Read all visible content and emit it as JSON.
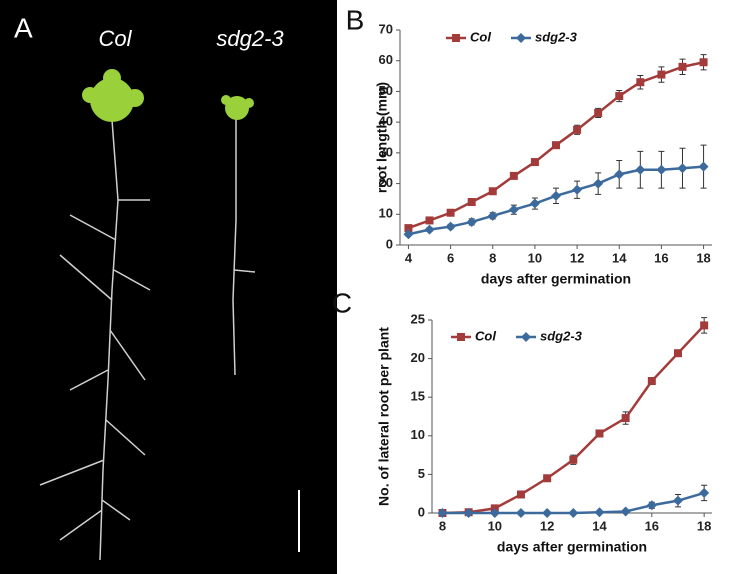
{
  "panel_a": {
    "label": "A",
    "plants": [
      "Col",
      "sdg2-3"
    ]
  },
  "chart_data": [
    {
      "type": "line",
      "panel": "B",
      "x_label": "days after germination",
      "y_label": "root length (mm)",
      "x": [
        4,
        5,
        6,
        7,
        8,
        9,
        10,
        11,
        12,
        13,
        14,
        15,
        16,
        17,
        18
      ],
      "series": [
        {
          "name": "Col",
          "color": "#a33b3b",
          "marker": "square",
          "values": [
            5.5,
            8,
            10.5,
            14,
            17.5,
            22.5,
            27,
            32.5,
            37.5,
            43,
            48.5,
            53,
            55.5,
            58,
            59.5
          ],
          "errors": [
            0.5,
            0.6,
            0.8,
            1,
            1,
            1,
            1,
            1,
            1.5,
            1.5,
            1.8,
            2.2,
            2.5,
            2.5,
            2.5
          ]
        },
        {
          "name": "sdg2-3",
          "color": "#3d6a9c",
          "marker": "diamond",
          "values": [
            3.5,
            5,
            6,
            7.5,
            9.5,
            11.5,
            13.5,
            16,
            18,
            20,
            23,
            24.5,
            24.5,
            25,
            25.5
          ],
          "errors": [
            0.5,
            0.6,
            0.7,
            1,
            1,
            1.5,
            1.8,
            2.5,
            2.8,
            3.5,
            4.5,
            6,
            6,
            6.5,
            7
          ]
        }
      ],
      "xlim": [
        3.6,
        18.4
      ],
      "xticks": [
        4,
        6,
        8,
        10,
        12,
        14,
        16,
        18
      ],
      "ylim": [
        0,
        70
      ],
      "yticks": [
        0,
        10,
        20,
        30,
        40,
        50,
        60,
        70
      ],
      "legend": "top-left"
    },
    {
      "type": "line",
      "panel": "C",
      "x_label": "days after germination",
      "y_label": "No. of lateral root per plant",
      "x": [
        8,
        9,
        10,
        11,
        12,
        13,
        14,
        15,
        16,
        17,
        18
      ],
      "series": [
        {
          "name": "Col",
          "color": "#a33b3b",
          "marker": "square",
          "values": [
            0,
            0.1,
            0.6,
            2.4,
            4.5,
            6.9,
            10.3,
            12.3,
            17.1,
            20.7,
            24.3
          ],
          "errors": [
            0,
            0.1,
            0.2,
            0.2,
            0.4,
            0.6,
            0.4,
            0.8,
            0.2,
            0.4,
            1
          ]
        },
        {
          "name": "sdg2-3",
          "color": "#3d6a9c",
          "marker": "diamond",
          "values": [
            0,
            0,
            0,
            0,
            0,
            0,
            0.1,
            0.2,
            1,
            1.6,
            2.6
          ],
          "errors": [
            0,
            0,
            0,
            0,
            0,
            0,
            0,
            0.1,
            0.4,
            0.8,
            1
          ]
        }
      ],
      "xlim": [
        7.6,
        18.3
      ],
      "xticks": [
        8,
        10,
        12,
        14,
        16,
        18
      ],
      "ylim": [
        0,
        25
      ],
      "yticks": [
        0,
        5,
        10,
        15,
        20,
        25
      ],
      "legend": "top-left"
    }
  ]
}
